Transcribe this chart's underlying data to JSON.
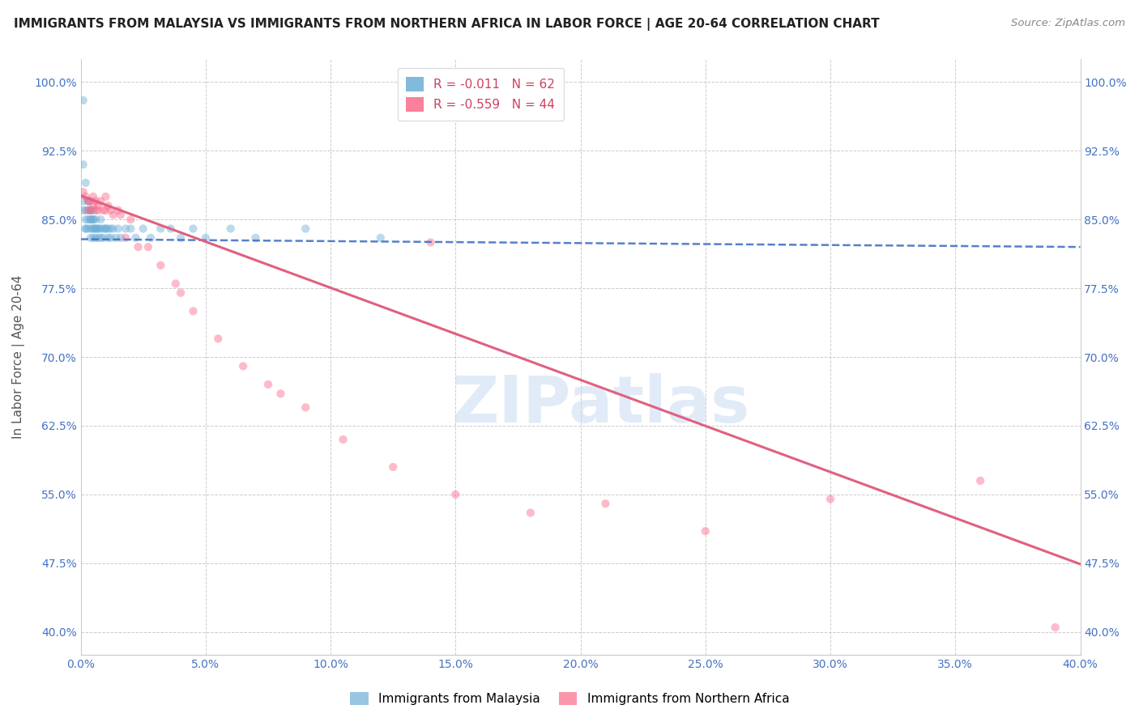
{
  "title": "IMMIGRANTS FROM MALAYSIA VS IMMIGRANTS FROM NORTHERN AFRICA IN LABOR FORCE | AGE 20-64 CORRELATION CHART",
  "source": "Source: ZipAtlas.com",
  "ylabel": "In Labor Force | Age 20-64",
  "xlim": [
    0.0,
    0.4
  ],
  "ylim": [
    0.375,
    1.025
  ],
  "yticks": [
    0.4,
    0.475,
    0.55,
    0.625,
    0.7,
    0.775,
    0.85,
    0.925,
    1.0
  ],
  "ytick_labels": [
    "40.0%",
    "47.5%",
    "55.0%",
    "62.5%",
    "70.0%",
    "77.5%",
    "85.0%",
    "92.5%",
    "100.0%"
  ],
  "xticks": [
    0.0,
    0.05,
    0.1,
    0.15,
    0.2,
    0.25,
    0.3,
    0.35,
    0.4
  ],
  "xtick_labels": [
    "0.0%",
    "5.0%",
    "10.0%",
    "15.0%",
    "20.0%",
    "25.0%",
    "30.0%",
    "35.0%",
    "40.0%"
  ],
  "malaysia_color": "#6baed6",
  "northern_africa_color": "#fb6a8a",
  "R_malaysia": -0.011,
  "N_malaysia": 62,
  "R_northern_africa": -0.559,
  "N_northern_africa": 44,
  "legend_R_color": "#d04060",
  "watermark_text": "ZIPatlas",
  "malaysia_x": [
    0.001,
    0.001,
    0.001,
    0.001,
    0.002,
    0.002,
    0.002,
    0.002,
    0.002,
    0.003,
    0.003,
    0.003,
    0.003,
    0.003,
    0.004,
    0.004,
    0.004,
    0.004,
    0.004,
    0.004,
    0.005,
    0.005,
    0.005,
    0.005,
    0.005,
    0.005,
    0.006,
    0.006,
    0.006,
    0.006,
    0.007,
    0.007,
    0.007,
    0.008,
    0.008,
    0.008,
    0.009,
    0.009,
    0.01,
    0.01,
    0.011,
    0.011,
    0.012,
    0.012,
    0.013,
    0.014,
    0.015,
    0.016,
    0.018,
    0.02,
    0.022,
    0.025,
    0.028,
    0.032,
    0.036,
    0.04,
    0.045,
    0.05,
    0.06,
    0.07,
    0.09,
    0.12
  ],
  "malaysia_y": [
    0.98,
    0.91,
    0.87,
    0.86,
    0.89,
    0.86,
    0.85,
    0.84,
    0.84,
    0.87,
    0.87,
    0.86,
    0.85,
    0.84,
    0.86,
    0.86,
    0.85,
    0.85,
    0.84,
    0.83,
    0.86,
    0.85,
    0.85,
    0.84,
    0.84,
    0.83,
    0.85,
    0.84,
    0.84,
    0.83,
    0.84,
    0.84,
    0.83,
    0.85,
    0.84,
    0.83,
    0.84,
    0.83,
    0.84,
    0.84,
    0.84,
    0.83,
    0.84,
    0.83,
    0.84,
    0.83,
    0.84,
    0.83,
    0.84,
    0.84,
    0.83,
    0.84,
    0.83,
    0.84,
    0.84,
    0.83,
    0.84,
    0.83,
    0.84,
    0.83,
    0.84,
    0.83
  ],
  "northern_africa_x": [
    0.001,
    0.002,
    0.003,
    0.003,
    0.004,
    0.004,
    0.005,
    0.005,
    0.006,
    0.006,
    0.007,
    0.007,
    0.008,
    0.009,
    0.01,
    0.01,
    0.011,
    0.012,
    0.013,
    0.015,
    0.016,
    0.018,
    0.02,
    0.023,
    0.027,
    0.032,
    0.038,
    0.045,
    0.055,
    0.065,
    0.075,
    0.09,
    0.105,
    0.125,
    0.15,
    0.18,
    0.21,
    0.25,
    0.3,
    0.36,
    0.08,
    0.04,
    0.14,
    0.39
  ],
  "northern_africa_y": [
    0.88,
    0.875,
    0.87,
    0.86,
    0.86,
    0.87,
    0.865,
    0.875,
    0.86,
    0.87,
    0.86,
    0.865,
    0.87,
    0.86,
    0.86,
    0.875,
    0.865,
    0.86,
    0.855,
    0.86,
    0.855,
    0.83,
    0.85,
    0.82,
    0.82,
    0.8,
    0.78,
    0.75,
    0.72,
    0.69,
    0.67,
    0.645,
    0.61,
    0.58,
    0.55,
    0.53,
    0.54,
    0.51,
    0.545,
    0.565,
    0.66,
    0.77,
    0.825,
    0.405
  ],
  "bg_color": "#ffffff",
  "grid_color": "#cccccc",
  "axis_color": "#cccccc",
  "tick_color": "#4472c4",
  "title_color": "#222222",
  "title_fontsize": 11.0,
  "source_fontsize": 9.5,
  "ylabel_fontsize": 11,
  "tick_fontsize": 10,
  "legend_fontsize": 11,
  "scatter_size": 55,
  "scatter_alpha": 0.45,
  "trend_blue_color": "#4472c4",
  "trend_pink_color": "#e06080",
  "trend_linewidth_blue": 1.8,
  "trend_linewidth_pink": 2.2,
  "malaysia_trend_x0": 0.0,
  "malaysia_trend_y0": 0.8285,
  "malaysia_trend_x1": 0.4,
  "malaysia_trend_y1": 0.82,
  "na_trend_x0": 0.0,
  "na_trend_y0": 0.876,
  "na_trend_x1": 0.4,
  "na_trend_y1": 0.474
}
